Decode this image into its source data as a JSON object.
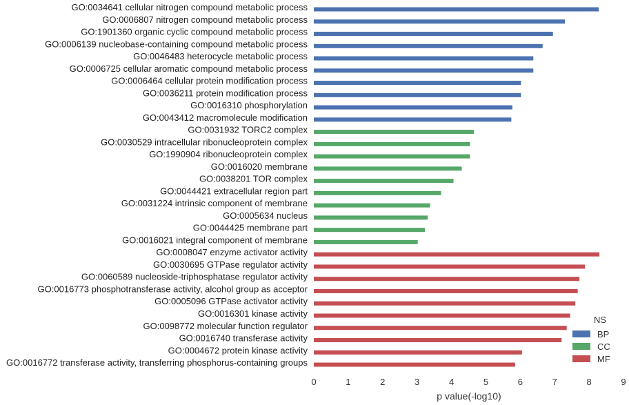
{
  "chart_data": {
    "type": "bar",
    "orientation": "horizontal",
    "xlabel": "p value(-log10)",
    "xlim": [
      0,
      9
    ],
    "xticks": [
      "0",
      "1",
      "2",
      "3",
      "4",
      "5",
      "6",
      "7",
      "8",
      "9"
    ],
    "grid": false,
    "legend": {
      "title": "NS",
      "placement": "lower-right",
      "entries": [
        {
          "name": "BP",
          "color": "#4c72b0"
        },
        {
          "name": "CC",
          "color": "#55a868"
        },
        {
          "name": "MF",
          "color": "#c44e52"
        }
      ]
    },
    "bars": [
      {
        "label": "GO:0034641 cellular nitrogen compound metabolic process",
        "value": 8.28,
        "group": "BP"
      },
      {
        "label": "GO:0006807 nitrogen compound metabolic process",
        "value": 7.3,
        "group": "BP"
      },
      {
        "label": "GO:1901360 organic cyclic compound metabolic process",
        "value": 6.95,
        "group": "BP"
      },
      {
        "label": "GO:0006139 nucleobase-containing compound metabolic process",
        "value": 6.65,
        "group": "BP"
      },
      {
        "label": "GO:0046483 heterocycle metabolic process",
        "value": 6.38,
        "group": "BP"
      },
      {
        "label": "GO:0006725 cellular aromatic compound metabolic process",
        "value": 6.38,
        "group": "BP"
      },
      {
        "label": "GO:0006464 cellular protein modification process",
        "value": 6.02,
        "group": "BP"
      },
      {
        "label": "GO:0036211 protein modification process",
        "value": 6.02,
        "group": "BP"
      },
      {
        "label": "GO:0016310 phosphorylation",
        "value": 5.77,
        "group": "BP"
      },
      {
        "label": "GO:0043412 macromolecule modification",
        "value": 5.74,
        "group": "BP"
      },
      {
        "label": "GO:0031932 TORC2 complex",
        "value": 4.65,
        "group": "CC"
      },
      {
        "label": "GO:0030529 intracellular ribonucleoprotein complex",
        "value": 4.54,
        "group": "CC"
      },
      {
        "label": "GO:1990904 ribonucleoprotein complex",
        "value": 4.54,
        "group": "CC"
      },
      {
        "label": "GO:0016020 membrane",
        "value": 4.3,
        "group": "CC"
      },
      {
        "label": "GO:0038201 TOR complex",
        "value": 4.06,
        "group": "CC"
      },
      {
        "label": "GO:0044421 extracellular region part",
        "value": 3.7,
        "group": "CC"
      },
      {
        "label": "GO:0031224 intrinsic component of membrane",
        "value": 3.38,
        "group": "CC"
      },
      {
        "label": "GO:0005634 nucleus",
        "value": 3.31,
        "group": "CC"
      },
      {
        "label": "GO:0044425 membrane part",
        "value": 3.23,
        "group": "CC"
      },
      {
        "label": "GO:0016021 integral component of membrane",
        "value": 3.02,
        "group": "CC"
      },
      {
        "label": "GO:0008047 enzyme activator activity",
        "value": 8.3,
        "group": "MF"
      },
      {
        "label": "GO:0030695 GTPase regulator activity",
        "value": 7.88,
        "group": "MF"
      },
      {
        "label": "GO:0060589 nucleoside-triphosphatase regulator activity",
        "value": 7.72,
        "group": "MF"
      },
      {
        "label": "GO:0016773 phosphotransferase activity, alcohol group as acceptor",
        "value": 7.67,
        "group": "MF"
      },
      {
        "label": "GO:0005096 GTPase activator activity",
        "value": 7.6,
        "group": "MF"
      },
      {
        "label": "GO:0016301 kinase activity",
        "value": 7.45,
        "group": "MF"
      },
      {
        "label": "GO:0098772 molecular function regulator",
        "value": 7.35,
        "group": "MF"
      },
      {
        "label": "GO:0016740 transferase activity",
        "value": 7.2,
        "group": "MF"
      },
      {
        "label": "GO:0004672 protein kinase activity",
        "value": 6.05,
        "group": "MF"
      },
      {
        "label": "GO:0016772 transferase activity, transferring phosphorus-containing groups",
        "value": 5.85,
        "group": "MF"
      }
    ]
  }
}
